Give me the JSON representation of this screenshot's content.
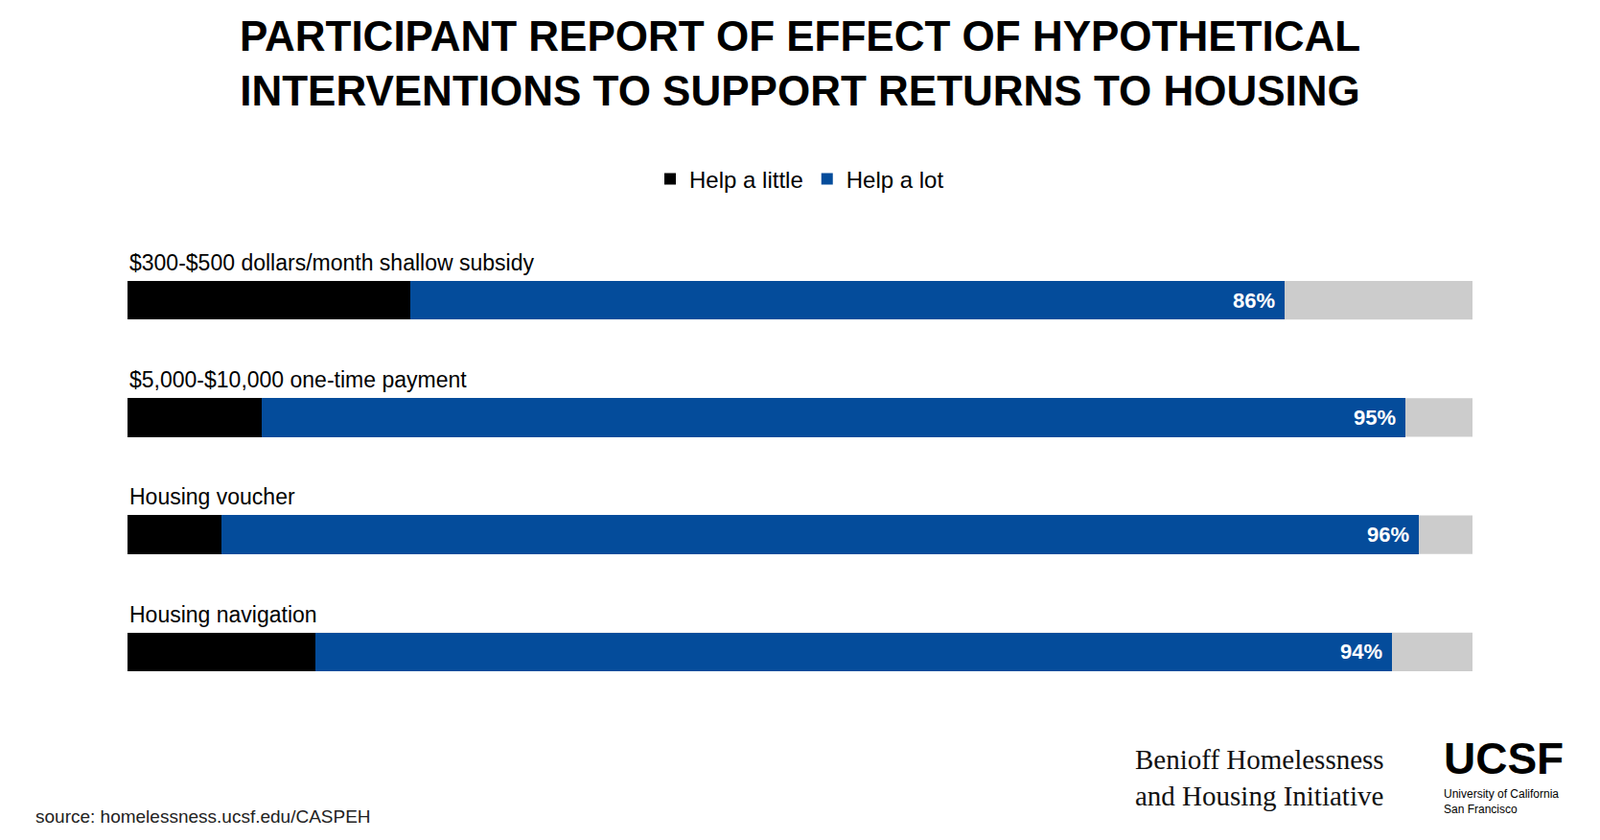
{
  "chart_data": {
    "type": "bar",
    "title": "PARTICIPANT REPORT OF EFFECT OF HYPOTHETICAL\nINTERVENTIONS TO SUPPORT RETURNS TO HOUSING",
    "categories": [
      "$300-$500 dollars/month shallow subsidy",
      "$5,000-$10,000 one-time payment",
      "Housing voucher",
      "Housing navigation"
    ],
    "series": [
      {
        "name": "Help a little",
        "color": "#000000",
        "values": [
          21,
          10,
          7,
          14
        ]
      },
      {
        "name": "Help a lot",
        "color": "#044c9b",
        "values": [
          65,
          85,
          89,
          80
        ]
      }
    ],
    "totals": [
      86,
      95,
      96,
      94
    ],
    "total_labels": [
      "86%",
      "95%",
      "96%",
      "94%"
    ],
    "orientation": "horizontal",
    "stacked": true,
    "xlim": [
      0,
      100
    ],
    "tick_labels": false,
    "grid": false,
    "legend": "top",
    "source": "source: homelessness.ucsf.edu/CASPEH",
    "credits": {
      "organization": "Benioff Homelessness\nand Housing Initiative",
      "logo": "UCSF",
      "university": "University of California\nSan Francisco"
    }
  }
}
